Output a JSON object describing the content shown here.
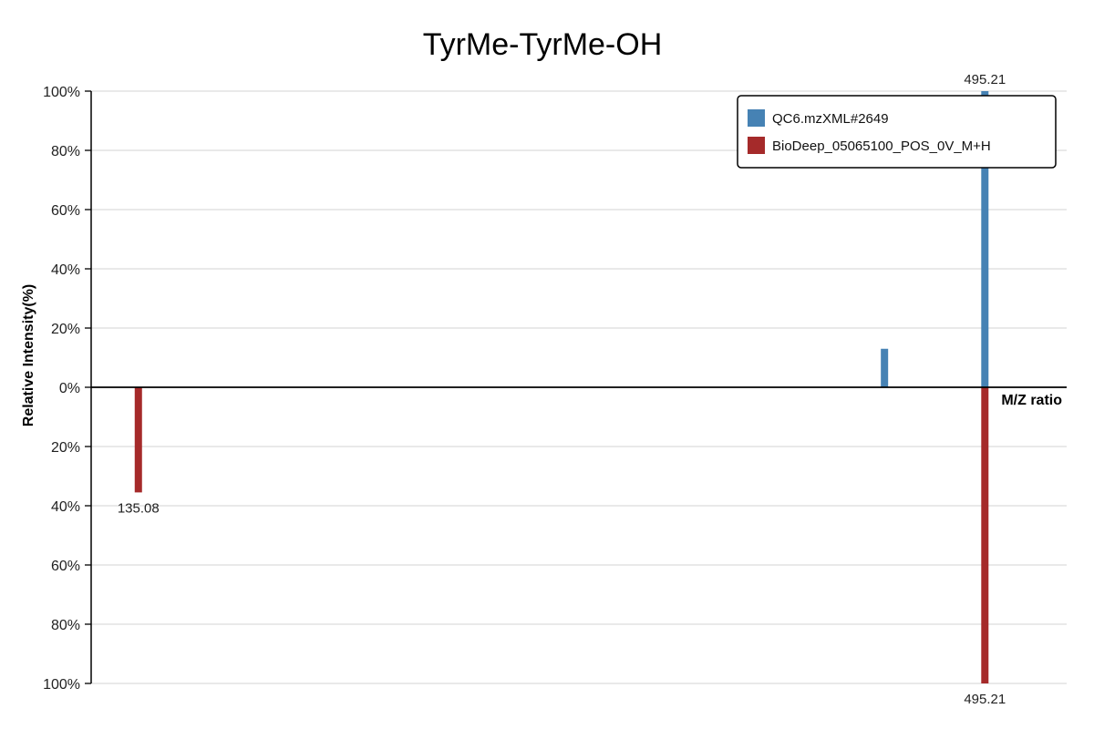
{
  "chart_data": {
    "type": "bar",
    "title": "TyrMe-TyrMe-OH",
    "xlabel": "M/Z ratio",
    "ylabel": "Relative Intensity(%)",
    "x_range": [
      115,
      530
    ],
    "y_ticks": [
      {
        "value": 100,
        "label": "100%"
      },
      {
        "value": 80,
        "label": "80%"
      },
      {
        "value": 60,
        "label": "60%"
      },
      {
        "value": 40,
        "label": "40%"
      },
      {
        "value": 20,
        "label": "20%"
      },
      {
        "value": 0,
        "label": "0%"
      },
      {
        "value": -20,
        "label": "20%"
      },
      {
        "value": -40,
        "label": "40%"
      },
      {
        "value": -60,
        "label": "60%"
      },
      {
        "value": -80,
        "label": "80%"
      },
      {
        "value": -100,
        "label": "100%"
      }
    ],
    "grid": true,
    "legend_position": "top-right",
    "series": [
      {
        "name": "QC6.mzXML#2649",
        "color": "#4682b4",
        "direction": "up",
        "peaks": [
          {
            "mz": 452.5,
            "intensity": 13,
            "label": ""
          },
          {
            "mz": 495.21,
            "intensity": 100,
            "label": "495.21"
          }
        ]
      },
      {
        "name": "BioDeep_05065100_POS_0V_M+H",
        "color": "#a52a2a",
        "direction": "down",
        "peaks": [
          {
            "mz": 135.08,
            "intensity": 35.5,
            "label": "135.08"
          },
          {
            "mz": 495.21,
            "intensity": 100,
            "label": "495.21"
          }
        ]
      }
    ]
  }
}
